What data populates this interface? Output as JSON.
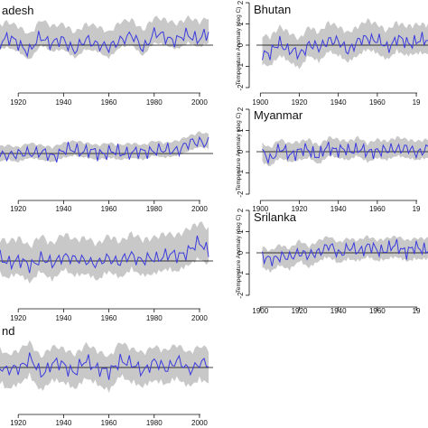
{
  "colors": {
    "band": "#c8c8c8",
    "line": "#3a3adf",
    "axis": "#111111",
    "zero": "#000000"
  },
  "chart_data": [
    {
      "type": "line",
      "title": "adesh",
      "ylabel": "",
      "xlim": [
        1900,
        2006
      ],
      "ylim": [
        -2,
        2
      ],
      "xticks": [
        "1920",
        "1940",
        "1960",
        "1980",
        "2000"
      ],
      "yticks": [],
      "x_start": 1901,
      "x_end": 2004,
      "anchors": [
        [
          1901,
          0.2
        ],
        [
          1905,
          0.5
        ],
        [
          1910,
          0.1
        ],
        [
          1915,
          0.3
        ],
        [
          1920,
          0.1
        ],
        [
          1925,
          -0.3
        ],
        [
          1930,
          0.4
        ],
        [
          1935,
          0.1
        ],
        [
          1940,
          0.2
        ],
        [
          1945,
          -0.2
        ],
        [
          1950,
          0.2
        ],
        [
          1955,
          0.1
        ],
        [
          1960,
          -0.2
        ],
        [
          1965,
          0.3
        ],
        [
          1970,
          0.4
        ],
        [
          1975,
          -0.1
        ],
        [
          1980,
          0.5
        ],
        [
          1985,
          0.4
        ],
        [
          1990,
          0.2
        ],
        [
          1995,
          0.5
        ],
        [
          2000,
          0.3
        ],
        [
          2004,
          0.5
        ]
      ],
      "band_lower": -0.4,
      "band_upper": 0.8
    },
    {
      "type": "line",
      "title": "Bhutan",
      "ylabel": "Temperature Anomaly (deg C)",
      "xlim": [
        1898,
        1986
      ],
      "ylim": [
        -2,
        2
      ],
      "xticks": [
        "1900",
        "1920",
        "1940",
        "1960",
        "19"
      ],
      "yticks": [
        "2",
        "1",
        "0",
        "-1",
        "-2"
      ],
      "x_start": 1901,
      "x_end": 1986,
      "anchors": [
        [
          1901,
          -0.3
        ],
        [
          1905,
          -0.4
        ],
        [
          1910,
          0.1
        ],
        [
          1915,
          -0.2
        ],
        [
          1920,
          -0.5
        ],
        [
          1925,
          0.1
        ],
        [
          1930,
          -0.2
        ],
        [
          1935,
          0.3
        ],
        [
          1940,
          0.1
        ],
        [
          1945,
          -0.2
        ],
        [
          1950,
          0.1
        ],
        [
          1955,
          0.4
        ],
        [
          1960,
          0.2
        ],
        [
          1965,
          -0.1
        ],
        [
          1970,
          0.3
        ],
        [
          1975,
          0.1
        ],
        [
          1980,
          0.2
        ],
        [
          1986,
          0.2
        ]
      ],
      "band_lower": -0.6,
      "band_upper": 0.8
    },
    {
      "type": "line",
      "title": "",
      "ylabel": "",
      "xlim": [
        1900,
        2006
      ],
      "ylim": [
        -2,
        2
      ],
      "xticks": [
        "1920",
        "1940",
        "1960",
        "1980",
        "2000"
      ],
      "yticks": [],
      "x_start": 1901,
      "x_end": 2004,
      "anchors": [
        [
          1901,
          -0.1
        ],
        [
          1905,
          -0.2
        ],
        [
          1910,
          -0.1
        ],
        [
          1915,
          0.0
        ],
        [
          1920,
          -0.1
        ],
        [
          1925,
          0.1
        ],
        [
          1930,
          0.0
        ],
        [
          1935,
          -0.1
        ],
        [
          1940,
          0.1
        ],
        [
          1945,
          0.2
        ],
        [
          1950,
          0.1
        ],
        [
          1955,
          0.0
        ],
        [
          1960,
          0.1
        ],
        [
          1965,
          0.0
        ],
        [
          1970,
          0.1
        ],
        [
          1975,
          0.0
        ],
        [
          1980,
          0.2
        ],
        [
          1985,
          0.1
        ],
        [
          1990,
          0.2
        ],
        [
          1995,
          0.4
        ],
        [
          2000,
          0.6
        ],
        [
          2004,
          0.5
        ]
      ],
      "band_lower": -0.3,
      "band_upper": 0.4
    },
    {
      "type": "line",
      "title": "Myanmar",
      "ylabel": "Temperature Anomaly (deg C)",
      "xlim": [
        1898,
        1986
      ],
      "ylim": [
        -2,
        2
      ],
      "xticks": [
        "1900",
        "1920",
        "1940",
        "1960",
        "19"
      ],
      "yticks": [
        "2",
        "1",
        "0",
        "-1",
        "-2"
      ],
      "x_start": 1901,
      "x_end": 1986,
      "anchors": [
        [
          1901,
          -0.1
        ],
        [
          1905,
          -0.3
        ],
        [
          1910,
          0.1
        ],
        [
          1915,
          -0.1
        ],
        [
          1920,
          0.0
        ],
        [
          1925,
          0.1
        ],
        [
          1930,
          -0.2
        ],
        [
          1935,
          0.2
        ],
        [
          1940,
          0.1
        ],
        [
          1945,
          0.0
        ],
        [
          1950,
          0.2
        ],
        [
          1955,
          -0.1
        ],
        [
          1960,
          0.1
        ],
        [
          1965,
          0.0
        ],
        [
          1970,
          0.2
        ],
        [
          1975,
          0.1
        ],
        [
          1980,
          0.0
        ],
        [
          1986,
          0.1
        ]
      ],
      "band_lower": -0.4,
      "band_upper": 0.5
    },
    {
      "type": "line",
      "title": "",
      "ylabel": "",
      "xlim": [
        1900,
        2006
      ],
      "ylim": [
        -2,
        2
      ],
      "xticks": [
        "1920",
        "1940",
        "1960",
        "1980",
        "2000"
      ],
      "yticks": [],
      "x_start": 1901,
      "x_end": 2004,
      "anchors": [
        [
          1901,
          0.0
        ],
        [
          1905,
          -0.3
        ],
        [
          1910,
          0.2
        ],
        [
          1915,
          -0.1
        ],
        [
          1920,
          0.1
        ],
        [
          1925,
          -0.3
        ],
        [
          1930,
          0.2
        ],
        [
          1935,
          -0.2
        ],
        [
          1940,
          0.3
        ],
        [
          1945,
          0.0
        ],
        [
          1950,
          0.1
        ],
        [
          1955,
          -0.2
        ],
        [
          1960,
          0.2
        ],
        [
          1965,
          -0.1
        ],
        [
          1970,
          0.3
        ],
        [
          1975,
          0.0
        ],
        [
          1980,
          0.1
        ],
        [
          1985,
          0.3
        ],
        [
          1990,
          0.2
        ],
        [
          1995,
          0.5
        ],
        [
          2000,
          0.8
        ],
        [
          2004,
          0.5
        ]
      ],
      "band_lower": -0.7,
      "band_upper": 1.0
    },
    {
      "type": "line",
      "title": "Srilanka",
      "ylabel": "Temperature Anomaly (deg C)",
      "xlim": [
        1898,
        1986
      ],
      "ylim": [
        -2,
        2
      ],
      "xticks": [
        "1900",
        "1920",
        "1940",
        "1960",
        "19"
      ],
      "yticks": [
        "2",
        "1",
        "0",
        "-1",
        "-2"
      ],
      "x_start": 1901,
      "x_end": 1986,
      "anchors": [
        [
          1901,
          -0.2
        ],
        [
          1905,
          -0.4
        ],
        [
          1910,
          -0.1
        ],
        [
          1915,
          -0.3
        ],
        [
          1920,
          0.1
        ],
        [
          1925,
          -0.2
        ],
        [
          1930,
          0.1
        ],
        [
          1935,
          0.3
        ],
        [
          1940,
          0.0
        ],
        [
          1945,
          0.2
        ],
        [
          1950,
          0.1
        ],
        [
          1955,
          0.3
        ],
        [
          1960,
          0.1
        ],
        [
          1965,
          0.2
        ],
        [
          1970,
          0.3
        ],
        [
          1975,
          0.1
        ],
        [
          1980,
          0.2
        ],
        [
          1986,
          0.2
        ]
      ],
      "band_lower": -0.5,
      "band_upper": 0.5
    },
    {
      "type": "line",
      "title": "nd",
      "ylabel": "",
      "xlim": [
        1900,
        2006
      ],
      "ylim": [
        -2,
        2
      ],
      "xticks": [
        "1920",
        "1940",
        "1960",
        "1980",
        "2000"
      ],
      "yticks": [],
      "x_start": 1901,
      "x_end": 2004,
      "anchors": [
        [
          1901,
          0.1
        ],
        [
          1905,
          -0.3
        ],
        [
          1910,
          0.3
        ],
        [
          1915,
          -0.2
        ],
        [
          1920,
          0.0
        ],
        [
          1925,
          0.4
        ],
        [
          1930,
          -0.3
        ],
        [
          1935,
          0.2
        ],
        [
          1940,
          0.1
        ],
        [
          1945,
          -0.2
        ],
        [
          1950,
          0.3
        ],
        [
          1955,
          0.0
        ],
        [
          1960,
          -0.3
        ],
        [
          1965,
          0.4
        ],
        [
          1970,
          0.1
        ],
        [
          1975,
          -0.1
        ],
        [
          1980,
          0.2
        ],
        [
          1985,
          0.0
        ],
        [
          1990,
          0.3
        ],
        [
          1995,
          -0.1
        ],
        [
          2000,
          0.2
        ],
        [
          2004,
          0.1
        ]
      ],
      "band_lower": -0.8,
      "band_upper": 0.8
    }
  ]
}
